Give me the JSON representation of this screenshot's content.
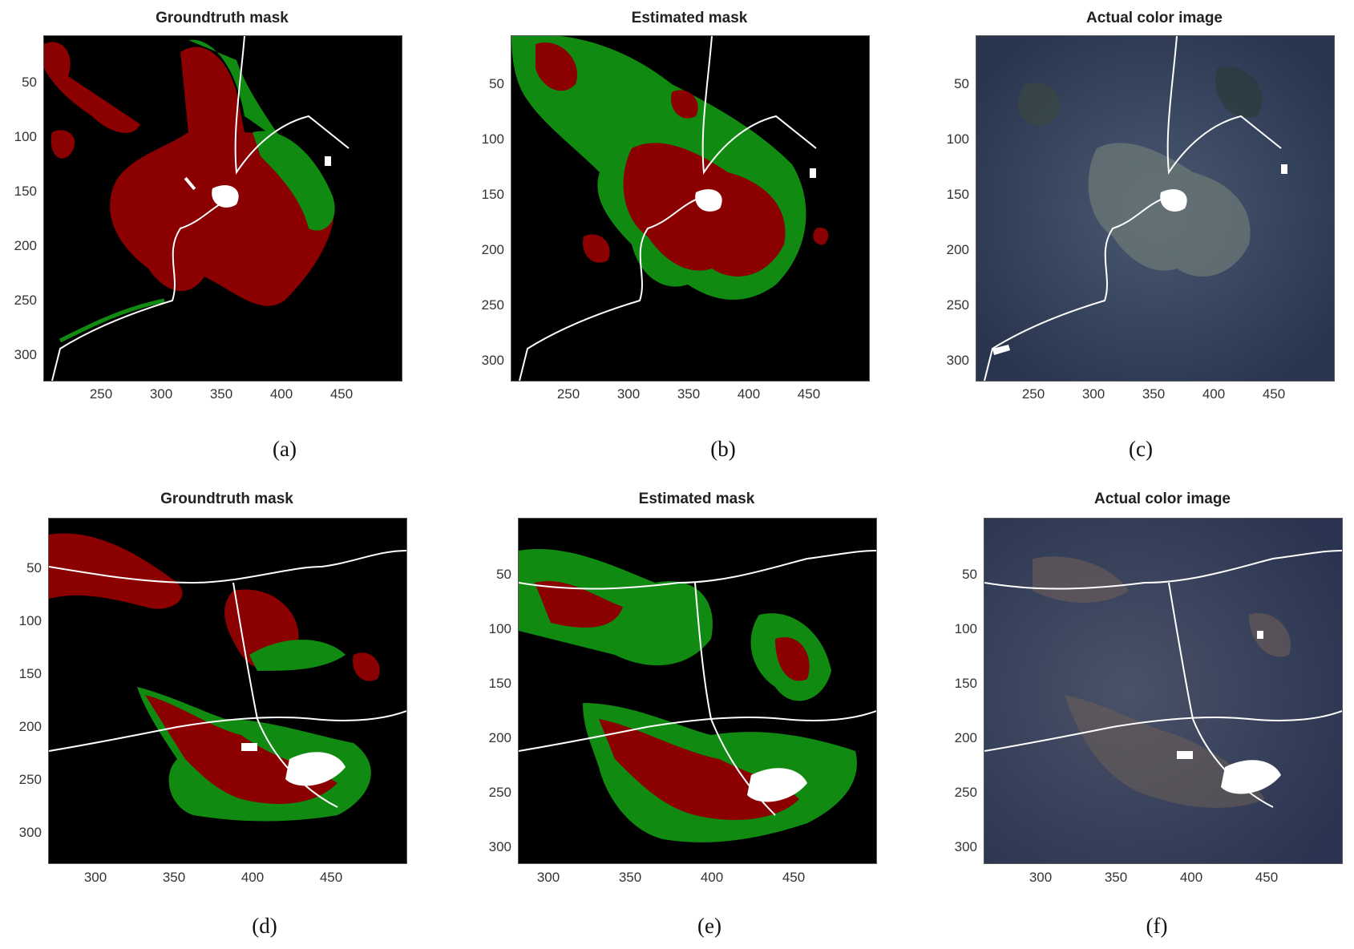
{
  "colors": {
    "background": "#000000",
    "class_a": "#8b0000",
    "class_b": "#118a11",
    "roads": "#ffffff",
    "satellite_dark": "#2c3a56",
    "satellite_light": "#7b8a8a"
  },
  "panels": [
    {
      "title": "Groundtruth mask",
      "caption": "(a)",
      "kind": "mask",
      "yticks": [
        "50",
        "100",
        "150",
        "200",
        "250",
        "300"
      ],
      "xticks": [
        "250",
        "300",
        "350",
        "400",
        "450"
      ]
    },
    {
      "title": "Estimated mask",
      "caption": "(b)",
      "kind": "mask",
      "yticks": [
        "50",
        "100",
        "150",
        "200",
        "250",
        "300"
      ],
      "xticks": [
        "250",
        "300",
        "350",
        "400",
        "450"
      ]
    },
    {
      "title": "Actual color image",
      "caption": "(c)",
      "kind": "image",
      "yticks": [
        "50",
        "100",
        "150",
        "200",
        "250",
        "300"
      ],
      "xticks": [
        "250",
        "300",
        "350",
        "400",
        "450"
      ]
    },
    {
      "title": "Groundtruth mask",
      "caption": "(d)",
      "kind": "mask",
      "yticks": [
        "50",
        "100",
        "150",
        "200",
        "250",
        "300"
      ],
      "xticks": [
        "300",
        "350",
        "400",
        "450"
      ]
    },
    {
      "title": "Estimated mask",
      "caption": "(e)",
      "kind": "mask",
      "yticks": [
        "50",
        "100",
        "150",
        "200",
        "250",
        "300"
      ],
      "xticks": [
        "300",
        "350",
        "400",
        "450"
      ]
    },
    {
      "title": "Actual color image",
      "caption": "(f)",
      "kind": "image",
      "yticks": [
        "50",
        "100",
        "150",
        "200",
        "250",
        "300"
      ],
      "xticks": [
        "300",
        "350",
        "400",
        "450"
      ]
    }
  ]
}
